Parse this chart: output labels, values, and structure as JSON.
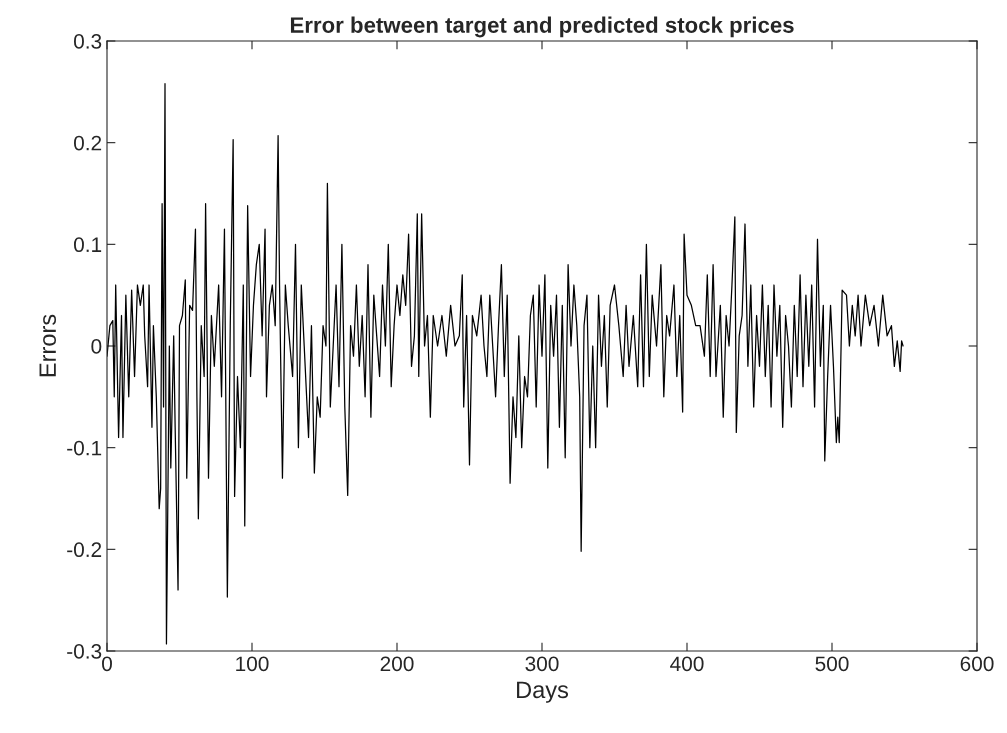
{
  "chart_data": {
    "type": "line",
    "title": "Error between target and predicted stock prices",
    "xlabel": "Days",
    "ylabel": "Errors",
    "xlim": [
      0,
      600
    ],
    "xticks": [
      0,
      100,
      200,
      300,
      400,
      500,
      600
    ],
    "ylim": [
      -0.3,
      0.3
    ],
    "yticks": [
      {
        "value": -0.3,
        "label": "-0.3"
      },
      {
        "value": -0.2,
        "label": "-0.2"
      },
      {
        "value": -0.1,
        "label": "-0.1"
      },
      0,
      0.1,
      0.2,
      0.3
    ],
    "marker": "none",
    "line_style": "solid",
    "series": [
      {
        "color": "#000000",
        "x": [
          0,
          2,
          4,
          5,
          6,
          8,
          10,
          11,
          13,
          15,
          17,
          19,
          21,
          23,
          25,
          26,
          28,
          29,
          31,
          32,
          34,
          36,
          37,
          38,
          39,
          40,
          41,
          43,
          44,
          46,
          47,
          49,
          50,
          52,
          54,
          55,
          57,
          59,
          61,
          62,
          63,
          65,
          67,
          68,
          70,
          72,
          74,
          77,
          79,
          81,
          83,
          85,
          87,
          88,
          90,
          92,
          94,
          95,
          97,
          99,
          101,
          103,
          105,
          107,
          109,
          110,
          112,
          114,
          116,
          118,
          119,
          121,
          123,
          125,
          128,
          130,
          132,
          134,
          136,
          139,
          141,
          143,
          145,
          147,
          149,
          151,
          152,
          154,
          156,
          158,
          160,
          162,
          164,
          166,
          168,
          170,
          172,
          174,
          176,
          178,
          180,
          182,
          184,
          186,
          188,
          190,
          192,
          194,
          196,
          198,
          200,
          202,
          204,
          206,
          208,
          210,
          212,
          214,
          215,
          217,
          219,
          221,
          223,
          225,
          228,
          231,
          234,
          237,
          240,
          243,
          245,
          246,
          248,
          250,
          252,
          255,
          258,
          260,
          262,
          264,
          266,
          268,
          270,
          272,
          274,
          276,
          278,
          280,
          282,
          284,
          286,
          288,
          290,
          292,
          294,
          296,
          298,
          300,
          302,
          304,
          306,
          308,
          310,
          312,
          314,
          316,
          318,
          320,
          322,
          324,
          326,
          327,
          329,
          331,
          333,
          335,
          337,
          339,
          341,
          343,
          345,
          347,
          350,
          353,
          356,
          358,
          360,
          363,
          366,
          368,
          370,
          372,
          374,
          376,
          379,
          382,
          384,
          386,
          388,
          391,
          393,
          395,
          397,
          398,
          400,
          403,
          406,
          409,
          412,
          414,
          416,
          418,
          420,
          423,
          425,
          427,
          429,
          431,
          433,
          434,
          436,
          438,
          440,
          442,
          444,
          446,
          448,
          450,
          452,
          454,
          456,
          458,
          460,
          462,
          464,
          466,
          468,
          470,
          472,
          474,
          476,
          478,
          480,
          482,
          484,
          486,
          488,
          490,
          492,
          494,
          495,
          497,
          499,
          501,
          503,
          504,
          505,
          507,
          510,
          512,
          514,
          516,
          518,
          520,
          523,
          526,
          529,
          532,
          535,
          538,
          541,
          543,
          545,
          547,
          548,
          549
        ],
        "values": [
          -0.01,
          0.02,
          0.025,
          -0.05,
          0.06,
          -0.09,
          0.03,
          -0.09,
          0.05,
          -0.05,
          0.055,
          -0.03,
          0.06,
          0.04,
          0.06,
          0.01,
          -0.04,
          0.06,
          -0.08,
          0.02,
          -0.05,
          -0.16,
          -0.14,
          0.14,
          -0.06,
          0.258,
          -0.293,
          0.0,
          -0.12,
          0.01,
          -0.08,
          -0.24,
          0.02,
          0.03,
          0.065,
          -0.13,
          0.04,
          0.035,
          0.115,
          -0.05,
          -0.17,
          0.02,
          -0.03,
          0.14,
          -0.13,
          0.03,
          -0.02,
          0.06,
          -0.05,
          0.115,
          -0.247,
          0.02,
          0.203,
          -0.148,
          -0.03,
          -0.1,
          0.06,
          -0.177,
          0.138,
          -0.03,
          0.04,
          0.08,
          0.1,
          0.01,
          0.115,
          -0.05,
          0.04,
          0.06,
          0.02,
          0.207,
          0.06,
          -0.13,
          0.06,
          0.02,
          -0.03,
          0.1,
          -0.1,
          0.06,
          0.0,
          -0.09,
          0.02,
          -0.125,
          -0.05,
          -0.07,
          0.02,
          0.0,
          0.16,
          -0.06,
          0.0,
          0.06,
          -0.04,
          0.1,
          -0.06,
          -0.147,
          0.02,
          -0.01,
          0.06,
          -0.02,
          0.03,
          -0.05,
          0.08,
          -0.07,
          0.05,
          0.01,
          -0.03,
          0.06,
          0.0,
          0.1,
          -0.04,
          0.02,
          0.06,
          0.03,
          0.07,
          0.04,
          0.11,
          -0.02,
          0.01,
          0.13,
          -0.03,
          0.13,
          0.0,
          0.03,
          -0.07,
          0.03,
          0.0,
          0.03,
          -0.01,
          0.04,
          0.0,
          0.01,
          0.07,
          -0.06,
          0.03,
          -0.117,
          0.03,
          0.01,
          0.05,
          0.0,
          -0.03,
          0.05,
          0.0,
          -0.05,
          0.02,
          0.08,
          -0.03,
          0.05,
          -0.135,
          -0.05,
          -0.09,
          0.01,
          -0.1,
          -0.03,
          -0.05,
          0.03,
          0.05,
          -0.06,
          0.06,
          -0.01,
          0.07,
          -0.12,
          0.04,
          -0.01,
          0.05,
          -0.08,
          0.04,
          -0.11,
          0.08,
          0.0,
          0.06,
          0.02,
          -0.05,
          -0.202,
          0.02,
          0.05,
          -0.1,
          0.0,
          -0.1,
          0.05,
          -0.02,
          0.03,
          -0.06,
          0.04,
          0.06,
          0.02,
          -0.03,
          0.04,
          -0.02,
          0.03,
          -0.04,
          0.07,
          -0.04,
          0.1,
          -0.03,
          0.05,
          0.0,
          0.08,
          -0.05,
          0.03,
          0.01,
          0.06,
          -0.03,
          0.03,
          -0.065,
          0.11,
          0.05,
          0.04,
          0.02,
          0.02,
          -0.01,
          0.07,
          -0.03,
          0.08,
          -0.03,
          0.04,
          -0.07,
          0.03,
          0.0,
          0.06,
          0.127,
          -0.085,
          0.01,
          0.03,
          0.12,
          -0.02,
          0.06,
          -0.06,
          0.03,
          -0.02,
          0.06,
          -0.03,
          0.04,
          -0.06,
          0.06,
          -0.01,
          0.04,
          -0.08,
          0.03,
          0.0,
          -0.06,
          0.04,
          -0.03,
          0.07,
          -0.04,
          0.05,
          -0.02,
          0.06,
          -0.06,
          0.105,
          -0.02,
          0.04,
          -0.113,
          -0.03,
          0.04,
          -0.02,
          -0.095,
          -0.07,
          -0.095,
          0.055,
          0.05,
          0.0,
          0.04,
          0.01,
          0.05,
          0.0,
          0.05,
          0.02,
          0.04,
          0.0,
          0.05,
          0.01,
          0.02,
          -0.02,
          0.005,
          -0.025,
          0.005,
          0.0
        ]
      }
    ]
  }
}
